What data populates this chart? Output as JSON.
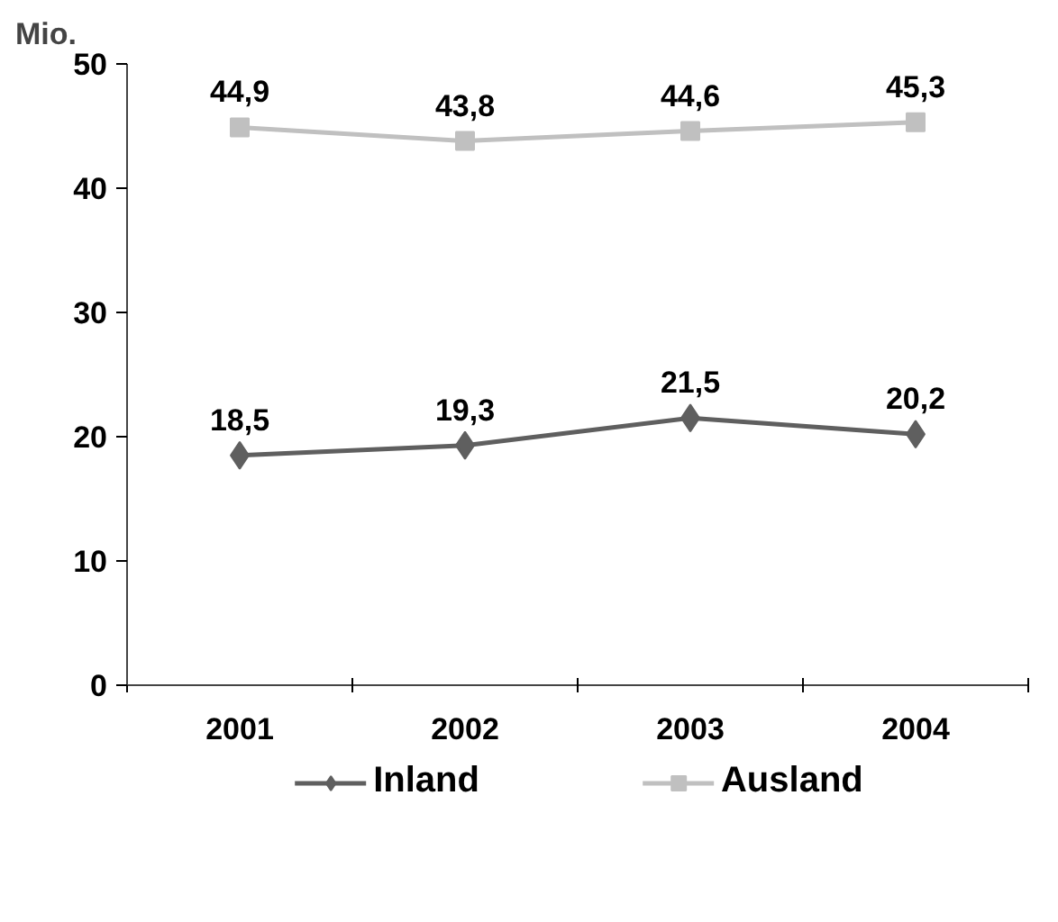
{
  "chart_data": {
    "type": "line",
    "ylabel": "Mio.",
    "categories": [
      "2001",
      "2002",
      "2003",
      "2004"
    ],
    "series": [
      {
        "name": "Inland",
        "color": "#5f5f5f",
        "marker": "diamond",
        "values": [
          18.5,
          19.3,
          21.5,
          20.2
        ],
        "value_labels": [
          "18,5",
          "19,3",
          "21,5",
          "20,2"
        ]
      },
      {
        "name": "Ausland",
        "color": "#c0c0c0",
        "marker": "square",
        "values": [
          44.9,
          43.8,
          44.6,
          45.3
        ],
        "value_labels": [
          "44,9",
          "43,8",
          "44,6",
          "45,3"
        ]
      }
    ],
    "ylim": [
      0,
      50
    ],
    "yticks": [
      0,
      10,
      20,
      30,
      40,
      50
    ],
    "grid": false,
    "legend": "bottom",
    "line_style": "solid"
  }
}
